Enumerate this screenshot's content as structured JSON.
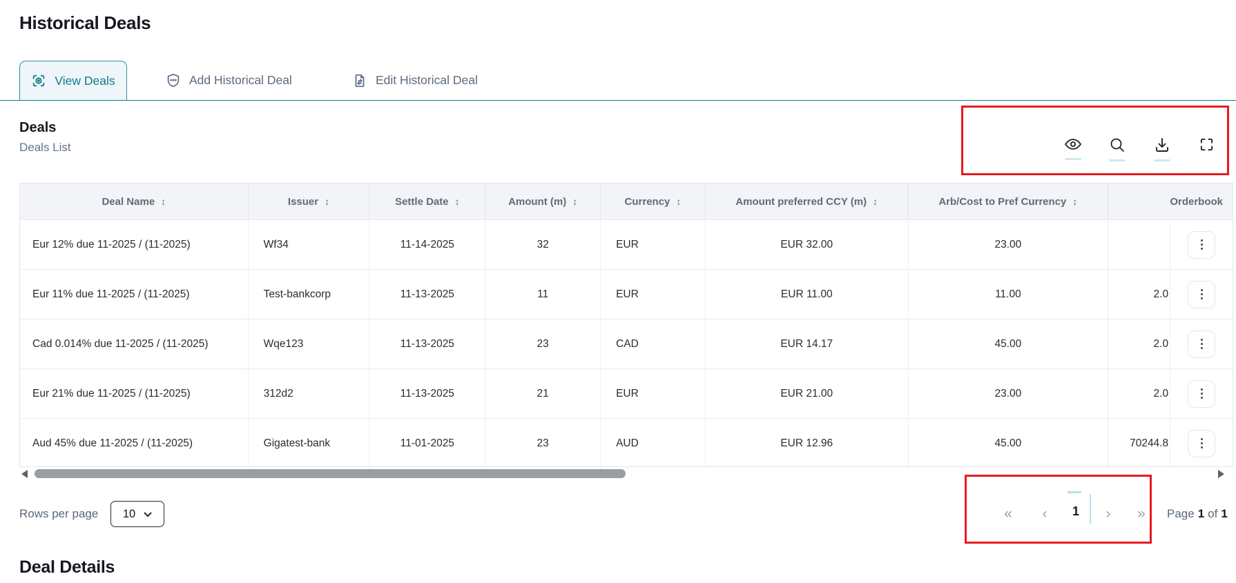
{
  "page": {
    "title": "Historical Deals",
    "section_title": "Deal Details"
  },
  "tabs": [
    {
      "label": "View Deals",
      "icon": "scan-eye-icon",
      "active": true
    },
    {
      "label": "Add Historical Deal",
      "icon": "shield-dots-icon",
      "active": false
    },
    {
      "label": "Edit Historical Deal",
      "icon": "document-transfer-icon",
      "active": false
    }
  ],
  "panel": {
    "title": "Deals",
    "subtitle": "Deals List"
  },
  "toolbar": {
    "icons": [
      "visibility-icon",
      "search-icon",
      "download-icon",
      "fullscreen-icon"
    ]
  },
  "table": {
    "columns": [
      {
        "key": "deal_name",
        "label": "Deal Name",
        "sortable": true
      },
      {
        "key": "issuer",
        "label": "Issuer",
        "sortable": true
      },
      {
        "key": "settle_date",
        "label": "Settle Date",
        "sortable": true
      },
      {
        "key": "amount",
        "label": "Amount (m)",
        "sortable": true
      },
      {
        "key": "currency",
        "label": "Currency",
        "sortable": true
      },
      {
        "key": "amount_pref",
        "label": "Amount preferred CCY (m)",
        "sortable": true
      },
      {
        "key": "arb_cost",
        "label": "Arb/Cost to Pref Currency",
        "sortable": true
      },
      {
        "key": "orderbook",
        "label": "Orderbook",
        "sortable": false
      }
    ],
    "sort_glyph": "↕",
    "rows": [
      {
        "deal_name": "Eur 12% due 11-2025 / (11-2025)",
        "issuer": "Wf34",
        "settle_date": "11-14-2025",
        "amount": "32",
        "currency": "EUR",
        "amount_pref": "EUR 32.00",
        "arb_cost": "23.00",
        "orderbook": ""
      },
      {
        "deal_name": "Eur 11% due 11-2025 / (11-2025)",
        "issuer": "Test-bankcorp",
        "settle_date": "11-13-2025",
        "amount": "11",
        "currency": "EUR",
        "amount_pref": "EUR 11.00",
        "arb_cost": "11.00",
        "orderbook": "2.0"
      },
      {
        "deal_name": "Cad 0.014% due 11-2025 / (11-2025)",
        "issuer": "Wqe123",
        "settle_date": "11-13-2025",
        "amount": "23",
        "currency": "CAD",
        "amount_pref": "EUR 14.17",
        "arb_cost": "45.00",
        "orderbook": "2.0"
      },
      {
        "deal_name": "Eur 21% due 11-2025 / (11-2025)",
        "issuer": "312d2",
        "settle_date": "11-13-2025",
        "amount": "21",
        "currency": "EUR",
        "amount_pref": "EUR 21.00",
        "arb_cost": "23.00",
        "orderbook": "2.0"
      },
      {
        "deal_name": "Aud 45% due 11-2025 / (11-2025)",
        "issuer": "Gigatest-bank",
        "settle_date": "11-01-2025",
        "amount": "23",
        "currency": "AUD",
        "amount_pref": "EUR 12.96",
        "arb_cost": "45.00",
        "orderbook": "70244.8"
      }
    ]
  },
  "footer": {
    "rows_per_page_label": "Rows per page",
    "rows_per_page_value": "10",
    "pagination": {
      "first": "«",
      "prev": "‹",
      "current": "1",
      "next": "›",
      "last": "»"
    },
    "page_indicator": {
      "prefix": "Page",
      "current": "1",
      "middle": "of",
      "total": "1"
    }
  },
  "colors": {
    "accent_teal": "#0d7c8b",
    "tab_active_bg": "#eef6f9",
    "annotation_red": "#e8191f",
    "header_bg": "#f2f4f7",
    "header_text": "#5f6b7b",
    "body_text": "#272c33",
    "muted_text": "#5b6878",
    "border": "#e2e6ea",
    "underline_cyan": "#cdeaf0",
    "scroll_thumb": "#999ea3"
  }
}
